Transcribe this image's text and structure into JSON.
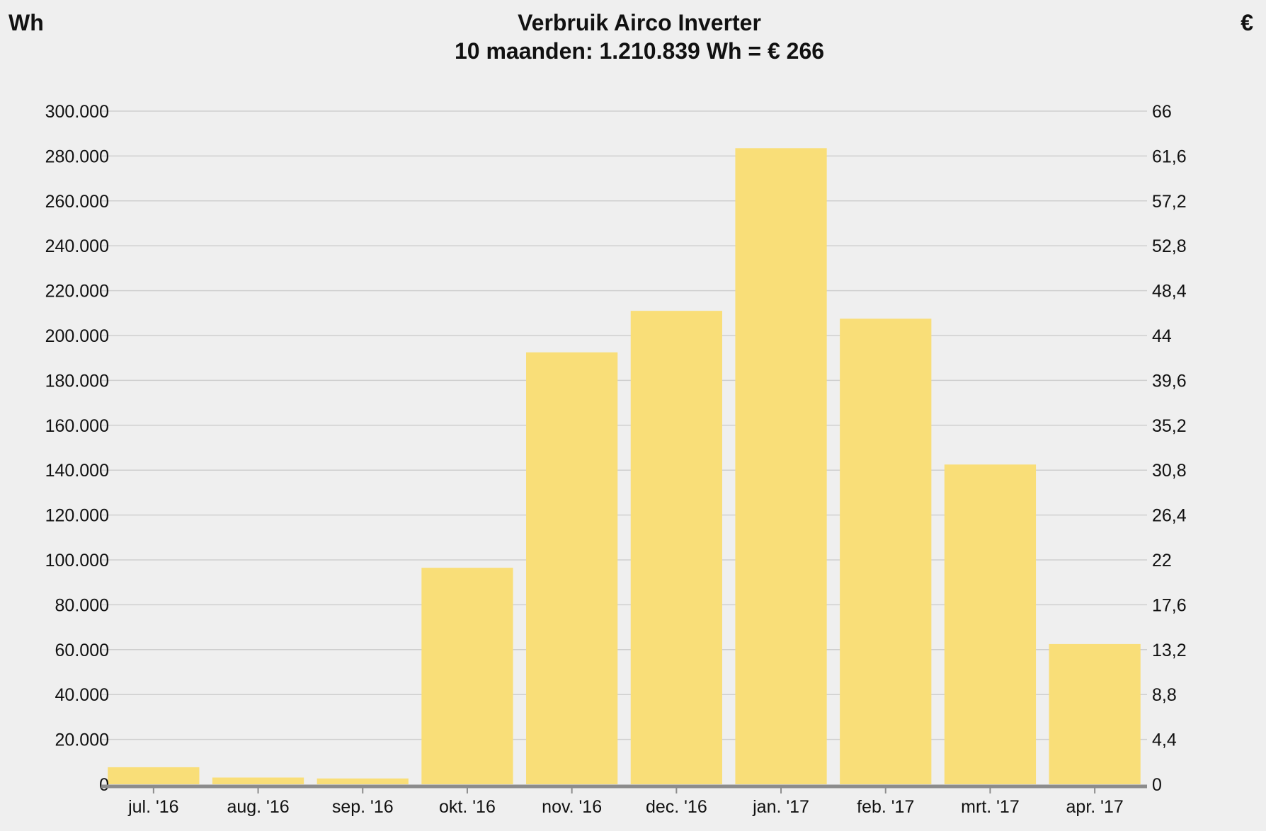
{
  "colors": {
    "background": "#efefef",
    "bar": "#f9de78",
    "grid": "#cfcfcf",
    "axis": "#8c8c8c"
  },
  "chart_data": {
    "type": "bar",
    "title": "Verbruik Airco Inverter",
    "subtitle": "10 maanden: 1.210.839 Wh = € 266",
    "ylabel_left": "Wh",
    "ylabel_right": "€",
    "categories": [
      "jul. '16",
      "aug. '16",
      "sep. '16",
      "okt. '16",
      "nov. '16",
      "dec. '16",
      "jan. '17",
      "feb. '17",
      "mrt. '17",
      "apr. '17"
    ],
    "values": [
      7600,
      3000,
      2600,
      96500,
      192500,
      211000,
      283500,
      207500,
      142500,
      62500
    ],
    "ylim": [
      0,
      300000
    ],
    "y2lim": [
      0,
      66
    ],
    "yticks": [
      "0",
      "20.000",
      "40.000",
      "60.000",
      "80.000",
      "100.000",
      "120.000",
      "140.000",
      "160.000",
      "180.000",
      "200.000",
      "220.000",
      "240.000",
      "260.000",
      "280.000",
      "300.000"
    ],
    "y2ticks": [
      "0",
      "4,4",
      "8,8",
      "13,2",
      "17,6",
      "22",
      "26,4",
      "30,8",
      "35,2",
      "39,6",
      "44",
      "48,4",
      "52,8",
      "57,2",
      "61,6",
      "66"
    ],
    "grid": true,
    "legend": "none"
  }
}
